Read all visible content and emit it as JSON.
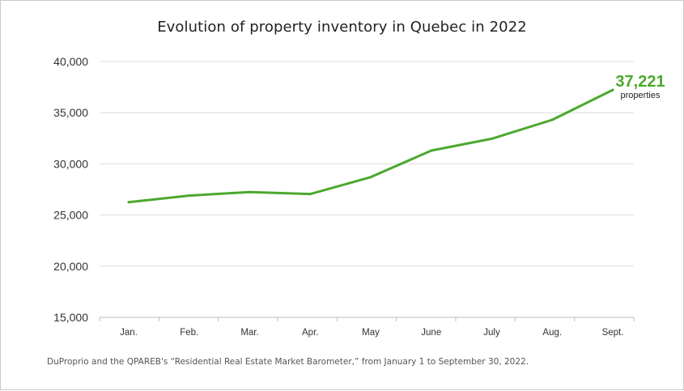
{
  "chart_data": {
    "type": "line",
    "title": "Evolution of property inventory in Quebec in 2022",
    "categories": [
      "Jan.",
      "Feb.",
      "Mar.",
      "Apr.",
      "May",
      "June",
      "July",
      "Aug.",
      "Sept."
    ],
    "series": [
      {
        "values": [
          26250,
          26900,
          27250,
          27050,
          28700,
          31300,
          32450,
          34300,
          37221
        ]
      }
    ],
    "ylim": [
      15000,
      40000
    ],
    "yticks": [
      "15,000",
      "20,000",
      "25,000",
      "30,000",
      "35,000",
      "40,000"
    ],
    "ytick_values": [
      15000,
      20000,
      25000,
      30000,
      35000,
      40000
    ],
    "grid": true,
    "line_color": "#4ca82e",
    "annotation": {
      "value": "37,221",
      "unit": "properties"
    }
  },
  "source_note": "DuProprio and the QPAREB's “Residential Real Estate Market Barometer,” from January 1 to September 30, 2022."
}
